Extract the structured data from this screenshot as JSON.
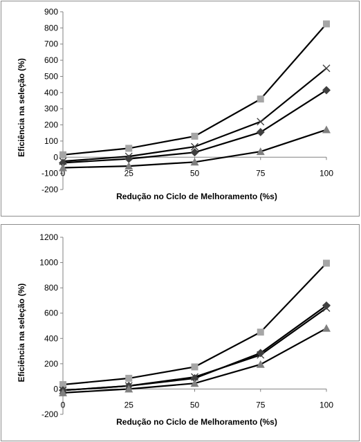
{
  "chart_data": [
    {
      "type": "line",
      "xlabel": "Redução no Ciclo de Melhoramento (%s)",
      "ylabel": "Eficiência na seleção (%)",
      "x": [
        0,
        25,
        50,
        75,
        100
      ],
      "x_ticks": [
        "0",
        "25",
        "50",
        "75",
        "100"
      ],
      "ylim": [
        -200,
        900
      ],
      "y_ticks": [
        -200,
        -100,
        0,
        100,
        200,
        300,
        400,
        500,
        600,
        700,
        800,
        900
      ],
      "grid": false,
      "legend": "none",
      "series": [
        {
          "marker": "square",
          "color": "#a6a6a6",
          "values": [
            15,
            55,
            130,
            360,
            825
          ]
        },
        {
          "marker": "x",
          "color": "#404040",
          "values": [
            -25,
            5,
            65,
            220,
            550
          ]
        },
        {
          "marker": "diamond",
          "color": "#404040",
          "values": [
            -35,
            -10,
            30,
            155,
            415
          ]
        },
        {
          "marker": "triangle",
          "color": "#808080",
          "values": [
            -65,
            -55,
            -30,
            35,
            170
          ]
        }
      ]
    },
    {
      "type": "line",
      "xlabel": "Redução no Ciclo de Melhoramento (%s)",
      "ylabel": "Eficiência na seleção (%)",
      "x": [
        0,
        25,
        50,
        75,
        100
      ],
      "x_ticks": [
        "0",
        "25",
        "50",
        "75",
        "100"
      ],
      "ylim": [
        -200,
        1200
      ],
      "y_ticks": [
        -200,
        0,
        200,
        400,
        600,
        800,
        1000,
        1200
      ],
      "grid": false,
      "legend": "none",
      "series": [
        {
          "marker": "square",
          "color": "#a6a6a6",
          "values": [
            35,
            85,
            175,
            450,
            995
          ]
        },
        {
          "marker": "x",
          "color": "#404040",
          "values": [
            -10,
            25,
            95,
            270,
            640
          ]
        },
        {
          "marker": "diamond",
          "color": "#404040",
          "values": [
            -10,
            25,
            85,
            285,
            660
          ]
        },
        {
          "marker": "triangle",
          "color": "#808080",
          "values": [
            -30,
            0,
            45,
            195,
            480
          ]
        }
      ]
    }
  ]
}
